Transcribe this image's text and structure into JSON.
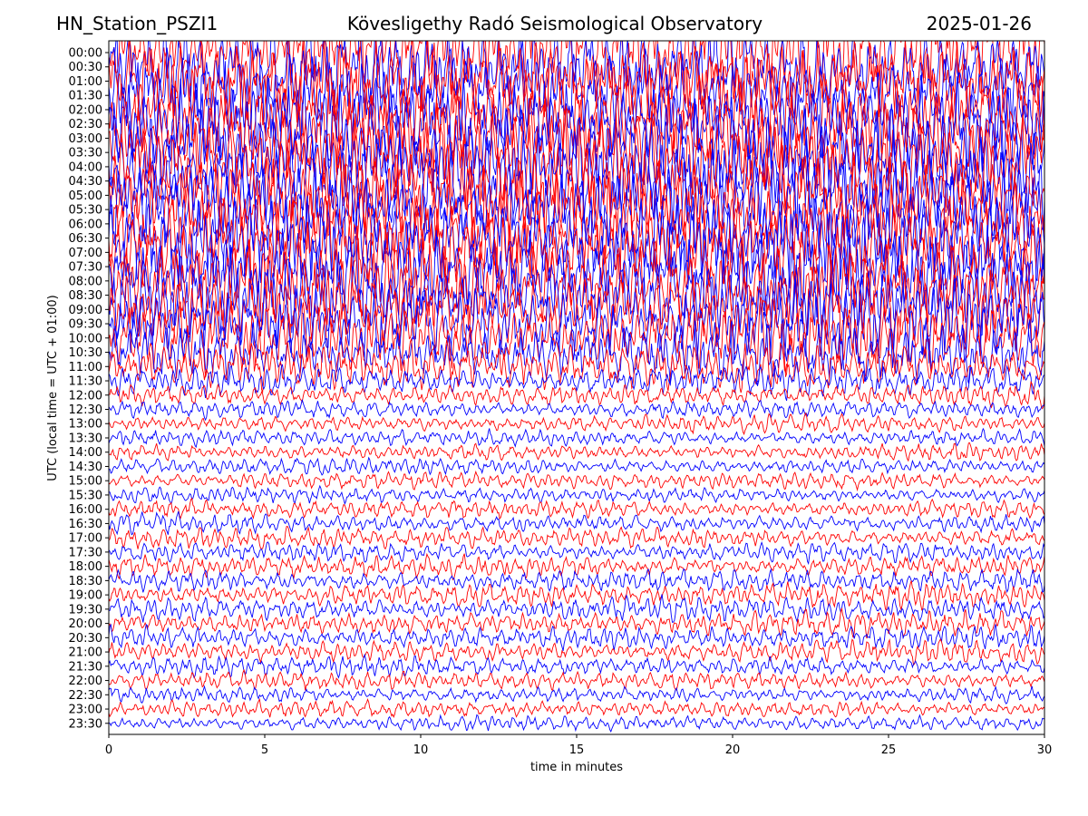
{
  "header": {
    "station": "HN_Station_PSZI1",
    "title": "Kövesligethy Radó Seismological Observatory",
    "date": "2025-01-26"
  },
  "chart_data": {
    "type": "line",
    "title": "Kövesligethy Radó Seismological Observatory",
    "xlabel": "time in minutes",
    "ylabel": "UTC (local time = UTC + 01:00)",
    "xlim": [
      0,
      30
    ],
    "x_ticks": [
      0,
      5,
      10,
      15,
      20,
      25,
      30
    ],
    "row_labels": [
      "00:00",
      "00:30",
      "01:00",
      "01:30",
      "02:00",
      "02:30",
      "03:00",
      "03:30",
      "04:00",
      "04:30",
      "05:00",
      "05:30",
      "06:00",
      "06:30",
      "07:00",
      "07:30",
      "08:00",
      "08:30",
      "09:00",
      "09:30",
      "10:00",
      "10:30",
      "11:00",
      "11:30",
      "12:00",
      "12:30",
      "13:00",
      "13:30",
      "14:00",
      "14:30",
      "15:00",
      "15:30",
      "16:00",
      "16:30",
      "17:00",
      "17:30",
      "18:00",
      "18:30",
      "19:00",
      "19:30",
      "20:00",
      "20:30",
      "21:00",
      "21:30",
      "22:00",
      "22:30",
      "23:00",
      "23:30"
    ],
    "trace_colors": [
      "#ff0000",
      "#0000ff"
    ],
    "row_amplitude": [
      4.5,
      4.5,
      4.6,
      4.6,
      4.7,
      4.7,
      4.8,
      4.8,
      4.8,
      4.8,
      4.8,
      4.8,
      4.8,
      4.8,
      4.7,
      4.6,
      4.5,
      4.4,
      4.2,
      4.0,
      3.6,
      3.0,
      2.3,
      1.6,
      1.1,
      0.9,
      0.8,
      0.8,
      0.8,
      0.8,
      0.8,
      0.8,
      0.9,
      0.9,
      1.0,
      1.0,
      1.1,
      1.1,
      1.2,
      1.2,
      1.2,
      1.2,
      1.1,
      1.0,
      0.9,
      0.8,
      0.8,
      0.7
    ],
    "grid": false,
    "legend": "none"
  }
}
